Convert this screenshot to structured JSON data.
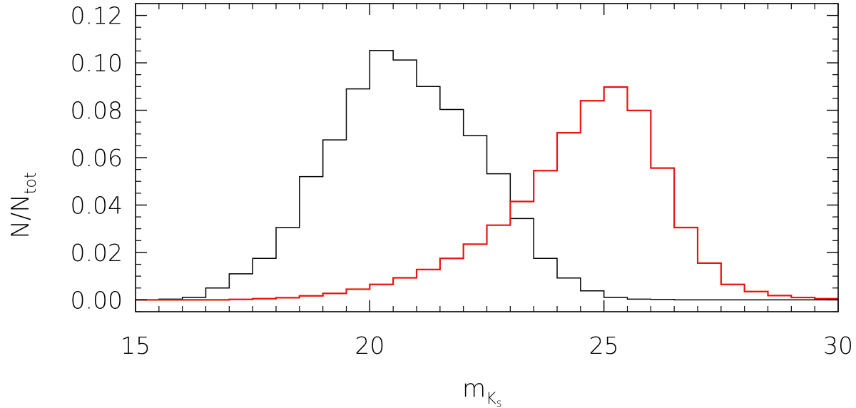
{
  "chart_data": {
    "type": "histogram",
    "title": "",
    "xlabel": "m",
    "xlabel_subscript": "K",
    "xlabel_subsubscript": "s",
    "ylabel": "N/N",
    "ylabel_subscript": "tot",
    "xlim": [
      15,
      30
    ],
    "ylim": [
      -0.005,
      0.125
    ],
    "xticks": [
      15,
      20,
      25,
      30
    ],
    "xtick_labels": [
      "15",
      "20",
      "25",
      "30"
    ],
    "yticks": [
      0.0,
      0.02,
      0.04,
      0.06,
      0.08,
      0.1,
      0.12
    ],
    "ytick_labels": [
      "0.00",
      "0.02",
      "0.04",
      "0.06",
      "0.08",
      "0.10",
      "0.12"
    ],
    "x_minor_step": 0.5,
    "y_minor_step": 0.005,
    "grid": false,
    "legend": "none",
    "bin_edges": [
      15.0,
      15.5,
      16.0,
      16.5,
      17.0,
      17.5,
      18.0,
      18.5,
      19.0,
      19.5,
      20.0,
      20.5,
      21.0,
      21.5,
      22.0,
      22.5,
      23.0,
      23.5,
      24.0,
      24.5,
      25.0,
      25.5,
      26.0,
      26.5,
      27.0,
      27.5,
      28.0,
      28.5,
      29.0,
      29.5,
      30.0
    ],
    "series": [
      {
        "color": "#000000",
        "values": [
          0.0,
          0.0003,
          0.001,
          0.005,
          0.011,
          0.0175,
          0.0305,
          0.052,
          0.0675,
          0.089,
          0.1052,
          0.1012,
          0.09,
          0.0803,
          0.0693,
          0.0532,
          0.0343,
          0.0175,
          0.0092,
          0.0038,
          0.001,
          0.0003,
          0.0002,
          0.0,
          0.0,
          0.0,
          0.0,
          0.0,
          0.0,
          0.0
        ]
      },
      {
        "color": "#e8140f",
        "values": [
          0.0,
          0.0,
          0.0,
          0.0,
          0.0002,
          0.0005,
          0.0009,
          0.0017,
          0.0027,
          0.0045,
          0.0065,
          0.0093,
          0.0128,
          0.0175,
          0.0235,
          0.0315,
          0.0415,
          0.0545,
          0.0705,
          0.084,
          0.0898,
          0.0799,
          0.0556,
          0.0305,
          0.0155,
          0.0065,
          0.0035,
          0.0018,
          0.001,
          0.0005
        ]
      }
    ]
  }
}
